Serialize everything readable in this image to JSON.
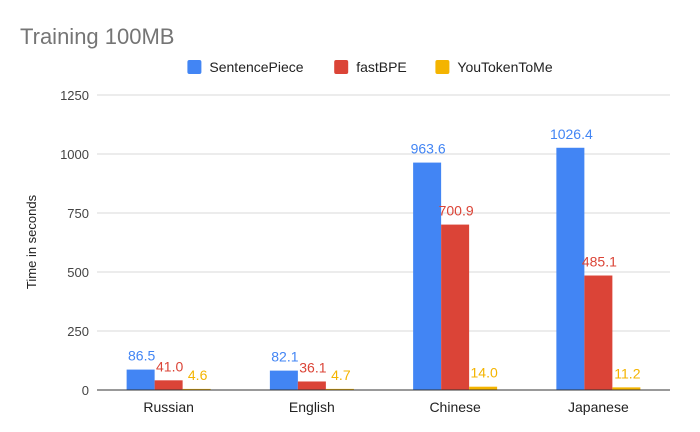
{
  "chart_data": {
    "type": "bar",
    "title": "Training 100MB",
    "xlabel": "",
    "ylabel": "Time in seconds",
    "ylim": [
      0,
      1250
    ],
    "yticks": [
      0,
      250,
      500,
      750,
      1000,
      1250
    ],
    "grid": true,
    "legend_position": "top",
    "categories": [
      "Russian",
      "English",
      "Chinese",
      "Japanese"
    ],
    "series": [
      {
        "name": "SentencePiece",
        "color": "#4285f4",
        "values": [
          86.5,
          82.1,
          963.6,
          1026.4
        ]
      },
      {
        "name": "fastBPE",
        "color": "#db4437",
        "values": [
          41.0,
          36.1,
          700.9,
          485.1
        ]
      },
      {
        "name": "YouTokenToMe",
        "color": "#f4b400",
        "values": [
          4.6,
          4.7,
          14.0,
          11.2
        ]
      }
    ]
  }
}
